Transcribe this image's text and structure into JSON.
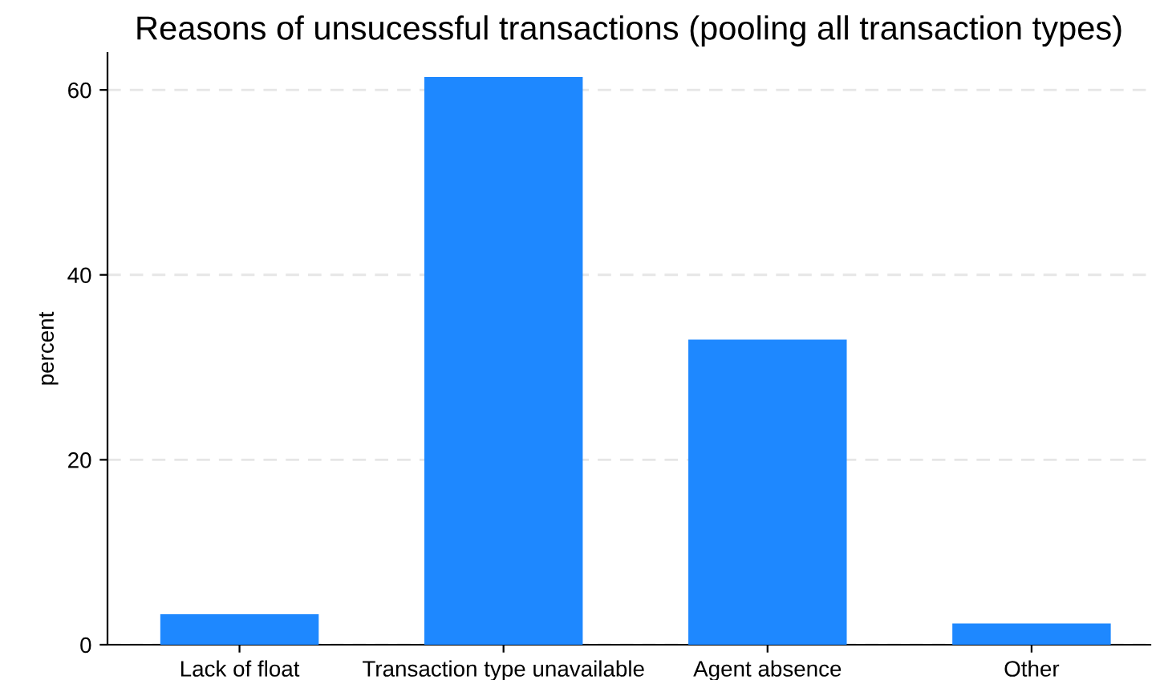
{
  "chart_data": {
    "type": "bar",
    "title": "Reasons of unsucessful transactions (pooling all transaction types)",
    "ylabel": "percent",
    "categories": [
      "Lack of float",
      "Transaction type unavailable",
      "Agent absence",
      "Other"
    ],
    "values": [
      3.3,
      61.4,
      33.0,
      2.3
    ],
    "color": "#1e88ff",
    "ylim": [
      0,
      64
    ],
    "yticks": [
      0,
      20,
      40,
      60
    ],
    "grid": "y"
  }
}
